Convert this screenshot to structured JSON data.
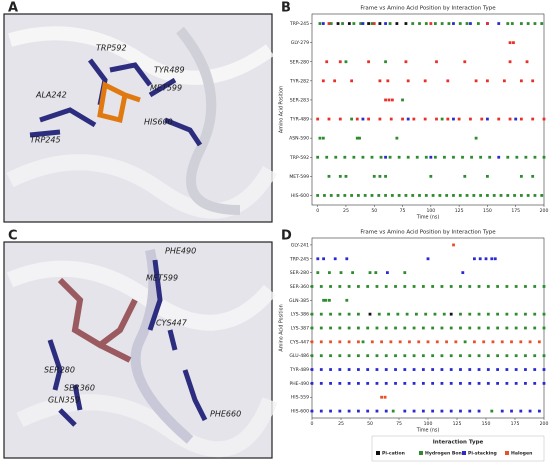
{
  "panels": [
    "A",
    "B",
    "C",
    "D"
  ],
  "images": [
    {
      "labels": [
        "TRP592",
        "TYR489",
        "ALA242",
        "MET599",
        "HIS600",
        "TRP245"
      ]
    },
    {
      "labels": [
        "PHE490",
        "MET599",
        "CYS447",
        "SER280",
        "SER360",
        "GLN359",
        "PHE660"
      ]
    }
  ],
  "chart_data": [
    {
      "type": "scatter",
      "title": "Frame vs Amino Acid Position by Interaction Type",
      "x_label": "Time (ns)",
      "y_label": "Amino Acid Position",
      "categories": [
        "TRP-245",
        "GLY-279",
        "SER-280",
        "TYR-282",
        "SER-283",
        "TYR-489",
        "ASN-590",
        "TRP-592",
        "MET-599",
        "HIS-600"
      ],
      "xlim": [
        -5,
        200
      ],
      "xticks": [
        0,
        25,
        50,
        75,
        100,
        125,
        150,
        175,
        200
      ],
      "series": [
        {
          "color": "#2e8b2e",
          "rows": [
            {
              "category": "TRP-245",
              "x": [
                2,
                12,
                22,
                32,
                38,
                48,
                64,
                84,
                90,
                96,
                104,
                110,
                116,
                126,
                132,
                142,
                168,
                172,
                180,
                186,
                192,
                198
              ]
            },
            {
              "category": "SER-280",
              "x": [
                25,
                60
              ]
            },
            {
              "category": "SER-283",
              "x": [
                75
              ]
            },
            {
              "category": "TYR-489",
              "x": [
                30,
                110
              ]
            },
            {
              "category": "ASN-590",
              "x": [
                2,
                5,
                35,
                37,
                70,
                140
              ]
            },
            {
              "category": "TRP-592",
              "x": [
                0,
                8,
                16,
                24,
                32,
                40,
                48,
                56,
                64,
                72,
                80,
                88,
                96,
                104,
                112,
                120,
                128,
                136,
                144,
                152,
                168,
                176,
                184,
                192,
                200
              ]
            },
            {
              "category": "MET-599",
              "x": [
                10,
                20,
                25,
                50,
                55,
                60,
                100,
                130,
                150,
                180,
                190
              ]
            },
            {
              "category": "HIS-600",
              "x": [
                0,
                6,
                12,
                18,
                24,
                30,
                36,
                42,
                48,
                54,
                60,
                66,
                72,
                78,
                84,
                90,
                96,
                102,
                108,
                114,
                120,
                126,
                132,
                138,
                144,
                150,
                156,
                162,
                168,
                174,
                180,
                186,
                192,
                198
              ]
            }
          ]
        },
        {
          "color": "#111111",
          "rows": [
            {
              "category": "TRP-245",
              "x": [
                18,
                28,
                45,
                55,
                70,
                78
              ]
            }
          ]
        },
        {
          "color": "#2a2ad0",
          "rows": [
            {
              "category": "TRP-245",
              "x": [
                5,
                40,
                60,
                120,
                135,
                150,
                160
              ]
            },
            {
              "category": "TYR-489",
              "x": [
                40,
                80,
                120,
                150,
                175
              ]
            },
            {
              "category": "TRP-592",
              "x": [
                60,
                100,
                160
              ]
            }
          ]
        },
        {
          "color": "#e8302a",
          "rows": [
            {
              "category": "TRP-245",
              "x": [
                10,
                50,
                100,
                150
              ]
            },
            {
              "category": "GLY-279",
              "x": [
                170,
                173
              ]
            },
            {
              "category": "SER-280",
              "x": [
                8,
                20,
                45,
                78,
                105,
                130,
                170,
                185
              ]
            },
            {
              "category": "TYR-282",
              "x": [
                5,
                15,
                30,
                55,
                62,
                80,
                95,
                115,
                140,
                150,
                165,
                180,
                190
              ]
            },
            {
              "category": "SER-283",
              "x": [
                60,
                63,
                66
              ]
            },
            {
              "category": "TYR-489",
              "x": [
                0,
                10,
                20,
                35,
                45,
                55,
                65,
                75,
                85,
                95,
                105,
                115,
                125,
                135,
                145,
                160,
                170,
                180,
                190,
                200
              ]
            }
          ]
        }
      ]
    },
    {
      "type": "scatter",
      "title": "Frame vs Amino Acid Position by Interaction Type",
      "x_label": "Time (ns)",
      "y_label": "Amino Acid Position",
      "categories": [
        "GLY-241",
        "TRP-245",
        "SER-280",
        "SER-360",
        "GLN-385",
        "LYS-386",
        "LYS-387",
        "CYS-447",
        "GLU-486",
        "TYR-489",
        "PHE-490",
        "HIS-559",
        "HIS-600"
      ],
      "xlim": [
        0,
        200
      ],
      "xticks": [
        0,
        25,
        50,
        75,
        100,
        125,
        150,
        175,
        200
      ],
      "legend": "bottom",
      "legend_title": "Interaction Type",
      "series": [
        {
          "name": "Pi-cation",
          "color": "#111111",
          "rows": [
            {
              "category": "LYS-386",
              "x": [
                50,
                120
              ]
            }
          ]
        },
        {
          "name": "Hydrogen Bond",
          "color": "#2e8b2e",
          "rows": [
            {
              "category": "SER-280",
              "x": [
                5,
                15,
                25,
                35,
                50,
                55,
                80
              ]
            },
            {
              "category": "SER-360",
              "x": [
                0,
                8,
                16,
                24,
                32,
                40,
                48,
                56,
                64,
                72,
                80,
                88,
                96,
                104,
                112,
                120,
                128,
                136,
                144,
                152,
                160,
                168,
                176,
                184,
                192,
                200
              ]
            },
            {
              "category": "GLN-385",
              "x": [
                10,
                12,
                15,
                30
              ]
            },
            {
              "category": "LYS-386",
              "x": [
                0,
                8,
                16,
                24,
                32,
                40,
                58,
                66,
                74,
                82,
                90,
                98,
                106,
                114,
                128,
                136,
                144,
                152,
                160,
                168,
                176,
                184,
                192,
                200
              ]
            },
            {
              "category": "LYS-387",
              "x": [
                0,
                8,
                16,
                24,
                32,
                40,
                48,
                56,
                64,
                72,
                80,
                88,
                96,
                104,
                112,
                120,
                128,
                136,
                144,
                152,
                160,
                168,
                176,
                184,
                192,
                200
              ]
            },
            {
              "category": "CYS-447",
              "x": [
                44,
                132
              ]
            },
            {
              "category": "GLU-486",
              "x": [
                0,
                8,
                16,
                24,
                32,
                40,
                48,
                56,
                64,
                72,
                80,
                88,
                96,
                104,
                112,
                120,
                128,
                136,
                144,
                152,
                160,
                168,
                176,
                184,
                192,
                200
              ]
            },
            {
              "category": "HIS-600",
              "x": [
                70,
                155
              ]
            }
          ]
        },
        {
          "name": "Pi-stacking",
          "color": "#2a2ad0",
          "rows": [
            {
              "category": "TRP-245",
              "x": [
                5,
                10,
                20,
                30,
                100,
                140,
                145,
                150,
                155,
                158
              ]
            },
            {
              "category": "SER-280",
              "x": [
                65,
                130
              ]
            },
            {
              "category": "TYR-489",
              "x": [
                0,
                8,
                16,
                24,
                32,
                40,
                48,
                56,
                64,
                72,
                80,
                88,
                96,
                104,
                112,
                120,
                128,
                136,
                144,
                152,
                160,
                168,
                176,
                184,
                192,
                200
              ]
            },
            {
              "category": "PHE-490",
              "x": [
                0,
                8,
                16,
                24,
                32,
                40,
                48,
                56,
                64,
                72,
                80,
                88,
                96,
                104,
                112,
                120,
                128,
                136,
                144,
                152,
                160,
                168,
                176,
                184,
                192,
                200
              ]
            },
            {
              "category": "HIS-600",
              "x": [
                0,
                8,
                16,
                24,
                32,
                40,
                48,
                56,
                64,
                80,
                88,
                96,
                104,
                112,
                120,
                128,
                136,
                144,
                164,
                172,
                180,
                188,
                196
              ]
            }
          ]
        },
        {
          "name": "Halogen",
          "color": "#e8502a",
          "rows": [
            {
              "category": "GLY-241",
              "x": [
                122
              ]
            },
            {
              "category": "CYS-447",
              "x": [
                0,
                8,
                16,
                24,
                32,
                40,
                52,
                60,
                68,
                76,
                84,
                92,
                100,
                108,
                116,
                124,
                140,
                148,
                156,
                164,
                172,
                180,
                188,
                196
              ]
            },
            {
              "category": "HIS-559",
              "x": [
                60,
                63
              ]
            }
          ]
        }
      ]
    }
  ]
}
